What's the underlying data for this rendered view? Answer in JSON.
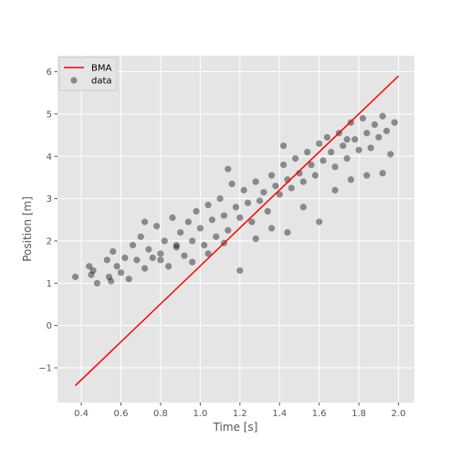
{
  "chart_data": {
    "type": "scatter",
    "xlabel": "Time [s]",
    "ylabel": "Position [m]",
    "xlim": [
      0.28,
      2.08
    ],
    "ylim": [
      -1.82,
      6.38
    ],
    "xticks": [
      0.4,
      0.6,
      0.8,
      1.0,
      1.2,
      1.4,
      1.6,
      1.8,
      2.0
    ],
    "xtick_labels": [
      "0.4",
      "0.6",
      "0.8",
      "1.0",
      "1.2",
      "1.4",
      "1.6",
      "1.8",
      "2.0"
    ],
    "yticks": [
      -1,
      0,
      1,
      2,
      3,
      4,
      5,
      6
    ],
    "ytick_labels": [
      "−1",
      "0",
      "1",
      "2",
      "3",
      "4",
      "5",
      "6"
    ],
    "grid": true,
    "legend_position": "top-left",
    "colors": {
      "plot_background": "#e5e5e5",
      "grid": "#ffffff",
      "line": "#ff0000",
      "points": "#000000",
      "point_opacity": 0.4
    },
    "line_series": {
      "name": "BMA",
      "x": [
        0.37,
        2.0
      ],
      "y": [
        -1.42,
        5.9
      ]
    },
    "scatter_series": {
      "name": "data",
      "x": [
        0.37,
        0.44,
        0.45,
        0.46,
        0.48,
        0.53,
        0.54,
        0.55,
        0.56,
        0.58,
        0.6,
        0.62,
        0.64,
        0.66,
        0.68,
        0.7,
        0.72,
        0.74,
        0.76,
        0.78,
        0.8,
        0.82,
        0.84,
        0.86,
        0.88,
        0.9,
        0.92,
        0.94,
        0.96,
        0.98,
        1.0,
        1.02,
        1.04,
        1.06,
        1.08,
        1.1,
        1.12,
        1.14,
        1.16,
        1.18,
        1.2,
        1.22,
        1.24,
        1.26,
        1.28,
        1.3,
        1.32,
        1.34,
        1.36,
        1.38,
        1.4,
        1.42,
        1.44,
        1.46,
        1.48,
        1.5,
        1.52,
        1.54,
        1.56,
        1.58,
        1.6,
        1.62,
        1.64,
        1.66,
        1.68,
        1.7,
        1.72,
        1.74,
        1.76,
        1.78,
        1.8,
        1.82,
        1.84,
        1.86,
        1.88,
        1.9,
        1.92,
        1.94,
        1.96,
        1.98,
        0.72,
        0.8,
        0.88,
        0.96,
        1.04,
        1.12,
        1.2,
        1.28,
        1.36,
        1.44,
        1.52,
        1.6,
        1.68,
        1.76,
        1.84,
        1.92,
        1.14,
        1.42,
        1.74
      ],
      "y": [
        1.15,
        1.4,
        1.2,
        1.3,
        1.0,
        1.55,
        1.15,
        1.05,
        1.75,
        1.4,
        1.25,
        1.6,
        1.1,
        1.9,
        1.55,
        2.1,
        1.35,
        1.8,
        1.6,
        2.35,
        1.7,
        2.0,
        1.4,
        2.55,
        1.85,
        2.2,
        1.65,
        2.45,
        2.0,
        2.7,
        2.3,
        1.9,
        2.85,
        2.5,
        2.1,
        3.0,
        2.6,
        2.25,
        3.35,
        2.8,
        2.55,
        3.2,
        2.9,
        2.45,
        3.4,
        2.95,
        3.15,
        2.7,
        3.55,
        3.3,
        3.1,
        3.8,
        3.45,
        3.25,
        3.95,
        3.6,
        3.4,
        4.1,
        3.8,
        3.55,
        4.3,
        3.9,
        4.45,
        4.1,
        3.75,
        4.55,
        4.25,
        3.95,
        4.8,
        4.4,
        4.15,
        4.9,
        4.55,
        4.2,
        4.75,
        4.45,
        4.95,
        4.6,
        4.05,
        4.8,
        2.45,
        1.55,
        1.9,
        1.5,
        1.7,
        1.95,
        1.3,
        2.05,
        2.3,
        2.2,
        2.8,
        2.45,
        3.2,
        3.45,
        3.55,
        3.6,
        3.7,
        4.25,
        4.4
      ]
    },
    "legend": [
      {
        "name": "BMA",
        "symbol": "line"
      },
      {
        "name": "data",
        "symbol": "circle"
      }
    ]
  }
}
